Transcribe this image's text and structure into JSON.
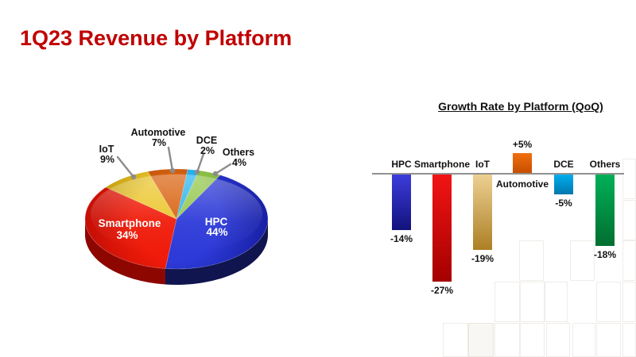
{
  "slide": {
    "title": "1Q23 Revenue by Platform",
    "title_color": "#c00000",
    "background_color": "#ffffff"
  },
  "chart_data": [
    {
      "type": "pie",
      "style": "3d",
      "title": "",
      "order_clockwise_from_top": [
        "DCE",
        "Others",
        "HPC",
        "Smartphone",
        "IoT",
        "Automotive"
      ],
      "start_angle_deg": 7,
      "slices": [
        {
          "label": "HPC",
          "value": 44,
          "value_label": "44%",
          "label_placement": "inside",
          "color_light": "#2d3ad8",
          "color_dark": "#161da0",
          "rim_color": "#10154f",
          "text_color": "#ffffff"
        },
        {
          "label": "Smartphone",
          "value": 34,
          "value_label": "34%",
          "label_placement": "inside",
          "color_light": "#f01b0a",
          "color_dark": "#c00d04",
          "rim_color": "#8e0600",
          "text_color": "#ffffff"
        },
        {
          "label": "IoT",
          "value": 9,
          "value_label": "9%",
          "label_placement": "callout",
          "color_light": "#ecc62e",
          "color_dark": "#ad8b00",
          "rim_color": "#8a6f00",
          "text_color": "#111111"
        },
        {
          "label": "Automotive",
          "value": 7,
          "value_label": "7%",
          "label_placement": "callout",
          "color_light": "#d96210",
          "color_dark": "#7c2f00",
          "rim_color": "#5f2400",
          "text_color": "#111111"
        },
        {
          "label": "DCE",
          "value": 2,
          "value_label": "2%",
          "label_placement": "callout",
          "color_light": "#2ab4f0",
          "color_dark": "#0a8cc8",
          "rim_color": "#0a6d9e",
          "text_color": "#111111"
        },
        {
          "label": "Others",
          "value": 4,
          "value_label": "4%",
          "label_placement": "callout",
          "color_light": "#94c74c",
          "color_dark": "#5e9a20",
          "rim_color": "#4a7a18",
          "text_color": "#111111"
        }
      ],
      "leader_line_color": "#8c8c8c"
    },
    {
      "type": "bar",
      "title": "Growth Rate by Platform (QoQ)",
      "categories": [
        "HPC",
        "Smartphone",
        "IoT",
        "Automotive",
        "DCE",
        "Others"
      ],
      "values": [
        -14,
        -27,
        -19,
        5,
        -5,
        -18
      ],
      "value_labels": [
        "-14%",
        "-27%",
        "-19%",
        "+5%",
        "-5%",
        "-18%"
      ],
      "baseline": 0,
      "ylim": [
        -30,
        8
      ],
      "grid": false,
      "legend": "none",
      "axis_color": "#909090",
      "bar_colors": [
        {
          "top": "#3c3cdc",
          "bottom": "#12127c"
        },
        {
          "top": "#f21414",
          "bottom": "#a40000"
        },
        {
          "top": "#ecd092",
          "bottom": "#ad7f24"
        },
        {
          "top": "#f1700f",
          "bottom": "#c64e00"
        },
        {
          "top": "#00aeef",
          "bottom": "#0077ad"
        },
        {
          "top": "#00b058",
          "bottom": "#006e30"
        }
      ]
    }
  ]
}
